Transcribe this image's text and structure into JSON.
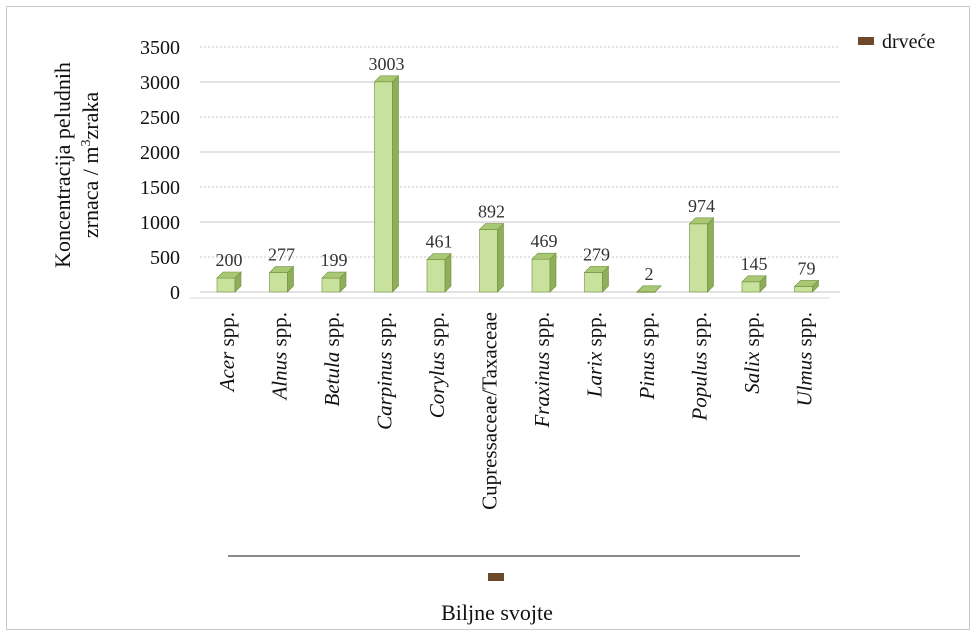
{
  "chart_data": {
    "type": "bar",
    "title": "",
    "ylabel_line1": "Koncentracija peludnih",
    "ylabel_line2_pre": "zrnaca / m",
    "ylabel_line2_sup": "3",
    "ylabel_line2_post": "zraka",
    "xlabel": "Biljne svojte",
    "ylim": [
      0,
      3500
    ],
    "yticks": [
      "0",
      "500",
      "1000",
      "1500",
      "2000",
      "2500",
      "3000",
      "3500"
    ],
    "grid": true,
    "legend_placement": "top-right",
    "series": [
      {
        "name": "drveće",
        "values": [
          200,
          277,
          199,
          3003,
          461,
          892,
          469,
          279,
          2,
          974,
          145,
          79
        ]
      }
    ],
    "categories": [
      {
        "italic": "Acer",
        "rest": " spp."
      },
      {
        "italic": "Alnus",
        "rest": " spp."
      },
      {
        "italic": "Betula",
        "rest": " spp."
      },
      {
        "italic": "Carpinus",
        "rest": " spp."
      },
      {
        "italic": "Corylus",
        "rest": " spp."
      },
      {
        "italic": "",
        "rest": "Cupressaceae/Taxaceae"
      },
      {
        "italic": "Fraxinus",
        "rest": " spp."
      },
      {
        "italic": "Larix",
        "rest": " spp."
      },
      {
        "italic": "Pinus",
        "rest": " spp."
      },
      {
        "italic": "Populus",
        "rest": " spp."
      },
      {
        "italic": "Salix",
        "rest": " spp."
      },
      {
        "italic": "Ulmus",
        "rest": " spp."
      }
    ],
    "data_labels": [
      "200",
      "277",
      "199",
      "3003",
      "461",
      "892",
      "469",
      "279",
      "2",
      "974",
      "145",
      "79"
    ]
  },
  "colors": {
    "bar_front": "#c8e29d",
    "bar_side": "#8fae5a",
    "bar_top": "#a9c873",
    "bar_edge": "#6f8f3e",
    "legend_swatch": "#6b4a2b",
    "grid": "#c6c6c6"
  }
}
